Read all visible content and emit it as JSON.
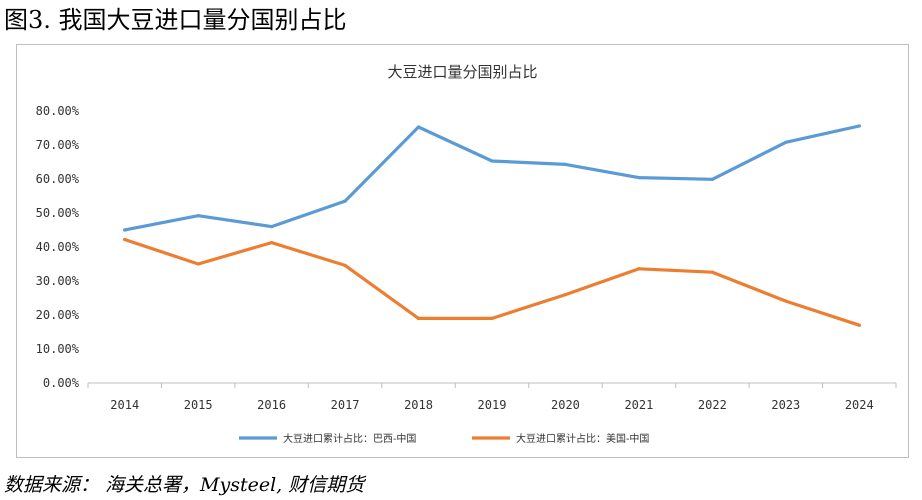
{
  "figure_title": "图3. 我国大豆进口量分国别占比",
  "source": "数据来源： 海关总署，Mysteel, 财信期货",
  "chart_data": {
    "type": "line",
    "title": "大豆进口量分国别占比",
    "x": [
      "2014",
      "2015",
      "2016",
      "2017",
      "2018",
      "2019",
      "2020",
      "2021",
      "2022",
      "2023",
      "2024"
    ],
    "yticks": [
      "0.00%",
      "10.00%",
      "20.00%",
      "30.00%",
      "40.00%",
      "50.00%",
      "60.00%",
      "70.00%",
      "80.00%"
    ],
    "ylim": [
      0,
      80
    ],
    "grid": false,
    "legend_position": "bottom",
    "series": [
      {
        "name": "大豆进口累计占比：巴西-中国",
        "color": "#5b9bd5",
        "values": [
          45.0,
          49.2,
          46.0,
          53.5,
          75.3,
          65.3,
          64.3,
          60.4,
          59.9,
          70.8,
          75.6
        ]
      },
      {
        "name": "大豆进口累计占比：美国-中国",
        "color": "#ed7d31",
        "values": [
          42.2,
          35.0,
          41.3,
          34.6,
          19.0,
          19.0,
          26.0,
          33.6,
          32.6,
          24.1,
          17.0
        ]
      }
    ]
  }
}
